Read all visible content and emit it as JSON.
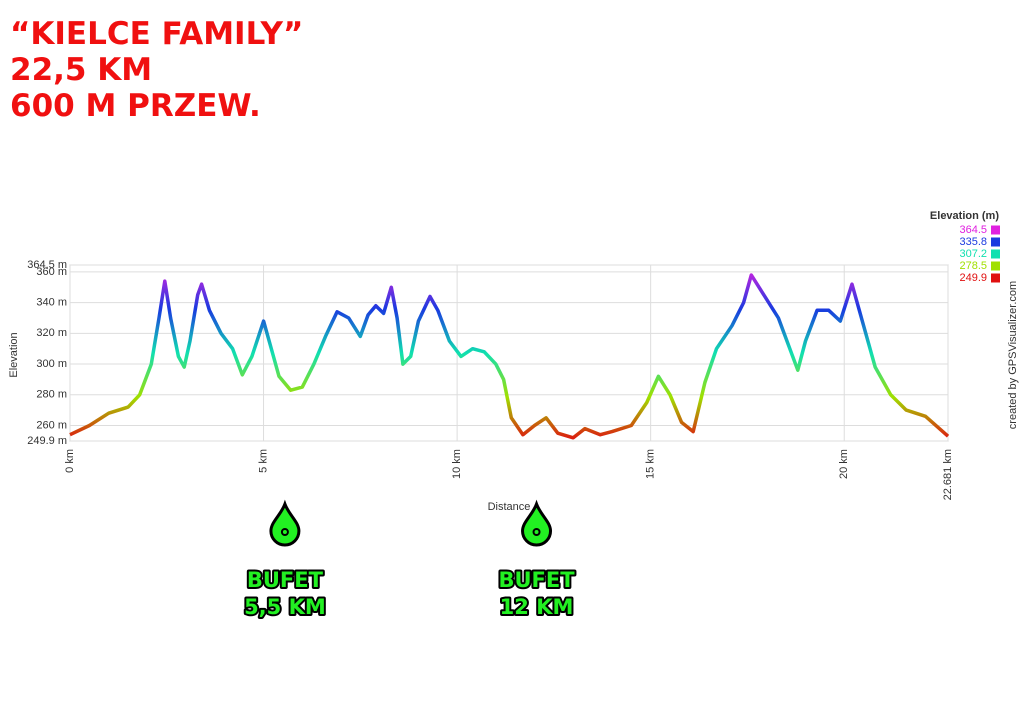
{
  "chart_data": {
    "type": "line",
    "title": "“KIELCE FAMILY”",
    "subtitles": [
      "22,5 KM",
      "600 M PRZEW."
    ],
    "x_label": "Distance",
    "y_label": "Elevation",
    "credit": "created by GPSVisualizer.com",
    "legend_title": "Elevation (m)",
    "color_scale": [
      {
        "value": 364.5,
        "color": "#e020e0"
      },
      {
        "value": 335.8,
        "color": "#1a3ae0"
      },
      {
        "value": 307.2,
        "color": "#10e0b0"
      },
      {
        "value": 278.5,
        "color": "#a0e000"
      },
      {
        "value": 249.9,
        "color": "#e01010"
      }
    ],
    "xlim": [
      0,
      22.681
    ],
    "xticks": [
      {
        "value": 0,
        "label": "0 km"
      },
      {
        "value": 5,
        "label": "5 km"
      },
      {
        "value": 10,
        "label": "10 km"
      },
      {
        "value": 15,
        "label": "15 km"
      },
      {
        "value": 20,
        "label": "20 km"
      },
      {
        "value": 22.681,
        "label": "22.681 km"
      }
    ],
    "ylim": [
      249.9,
      364.5
    ],
    "yticks": [
      {
        "value": 249.9,
        "label": "249.9 m"
      },
      {
        "value": 260,
        "label": "260 m"
      },
      {
        "value": 280,
        "label": "280 m"
      },
      {
        "value": 300,
        "label": "300 m"
      },
      {
        "value": 320,
        "label": "320 m"
      },
      {
        "value": 340,
        "label": "340 m"
      },
      {
        "value": 360,
        "label": "360 m"
      },
      {
        "value": 364.5,
        "label": "364.5 m"
      }
    ],
    "grid": true,
    "x": [
      0,
      0.5,
      1.0,
      1.5,
      1.8,
      2.1,
      2.3,
      2.45,
      2.6,
      2.8,
      2.95,
      3.1,
      3.3,
      3.4,
      3.6,
      3.9,
      4.2,
      4.45,
      4.7,
      5.0,
      5.2,
      5.4,
      5.7,
      6.0,
      6.3,
      6.6,
      6.9,
      7.2,
      7.5,
      7.7,
      7.9,
      8.1,
      8.3,
      8.45,
      8.6,
      8.8,
      9.0,
      9.3,
      9.5,
      9.8,
      10.1,
      10.4,
      10.7,
      11.0,
      11.2,
      11.4,
      11.7,
      12.0,
      12.3,
      12.6,
      13.0,
      13.3,
      13.7,
      14.0,
      14.5,
      14.9,
      15.2,
      15.5,
      15.8,
      16.1,
      16.4,
      16.7,
      17.1,
      17.4,
      17.6,
      17.9,
      18.3,
      18.8,
      19.0,
      19.3,
      19.6,
      19.9,
      20.2,
      20.5,
      20.8,
      21.2,
      21.6,
      22.1,
      22.681
    ],
    "values": [
      254,
      260,
      268,
      272,
      280,
      300,
      330,
      354,
      330,
      305,
      298,
      315,
      345,
      352,
      335,
      320,
      310,
      293,
      305,
      328,
      310,
      292,
      283,
      285,
      300,
      318,
      334,
      330,
      318,
      332,
      338,
      333,
      350,
      330,
      300,
      305,
      328,
      344,
      335,
      315,
      305,
      310,
      308,
      300,
      290,
      265,
      254,
      260,
      265,
      255,
      252,
      258,
      254,
      256,
      260,
      275,
      292,
      280,
      262,
      256,
      288,
      310,
      325,
      340,
      358,
      346,
      330,
      296,
      315,
      335,
      335,
      328,
      352,
      325,
      298,
      280,
      270,
      266,
      253
    ],
    "annotations": [
      {
        "x": 5.5,
        "text": [
          "BUFET",
          "5,5 KM"
        ]
      },
      {
        "x": 12,
        "text": [
          "BUFET",
          "12 KM"
        ]
      }
    ]
  }
}
